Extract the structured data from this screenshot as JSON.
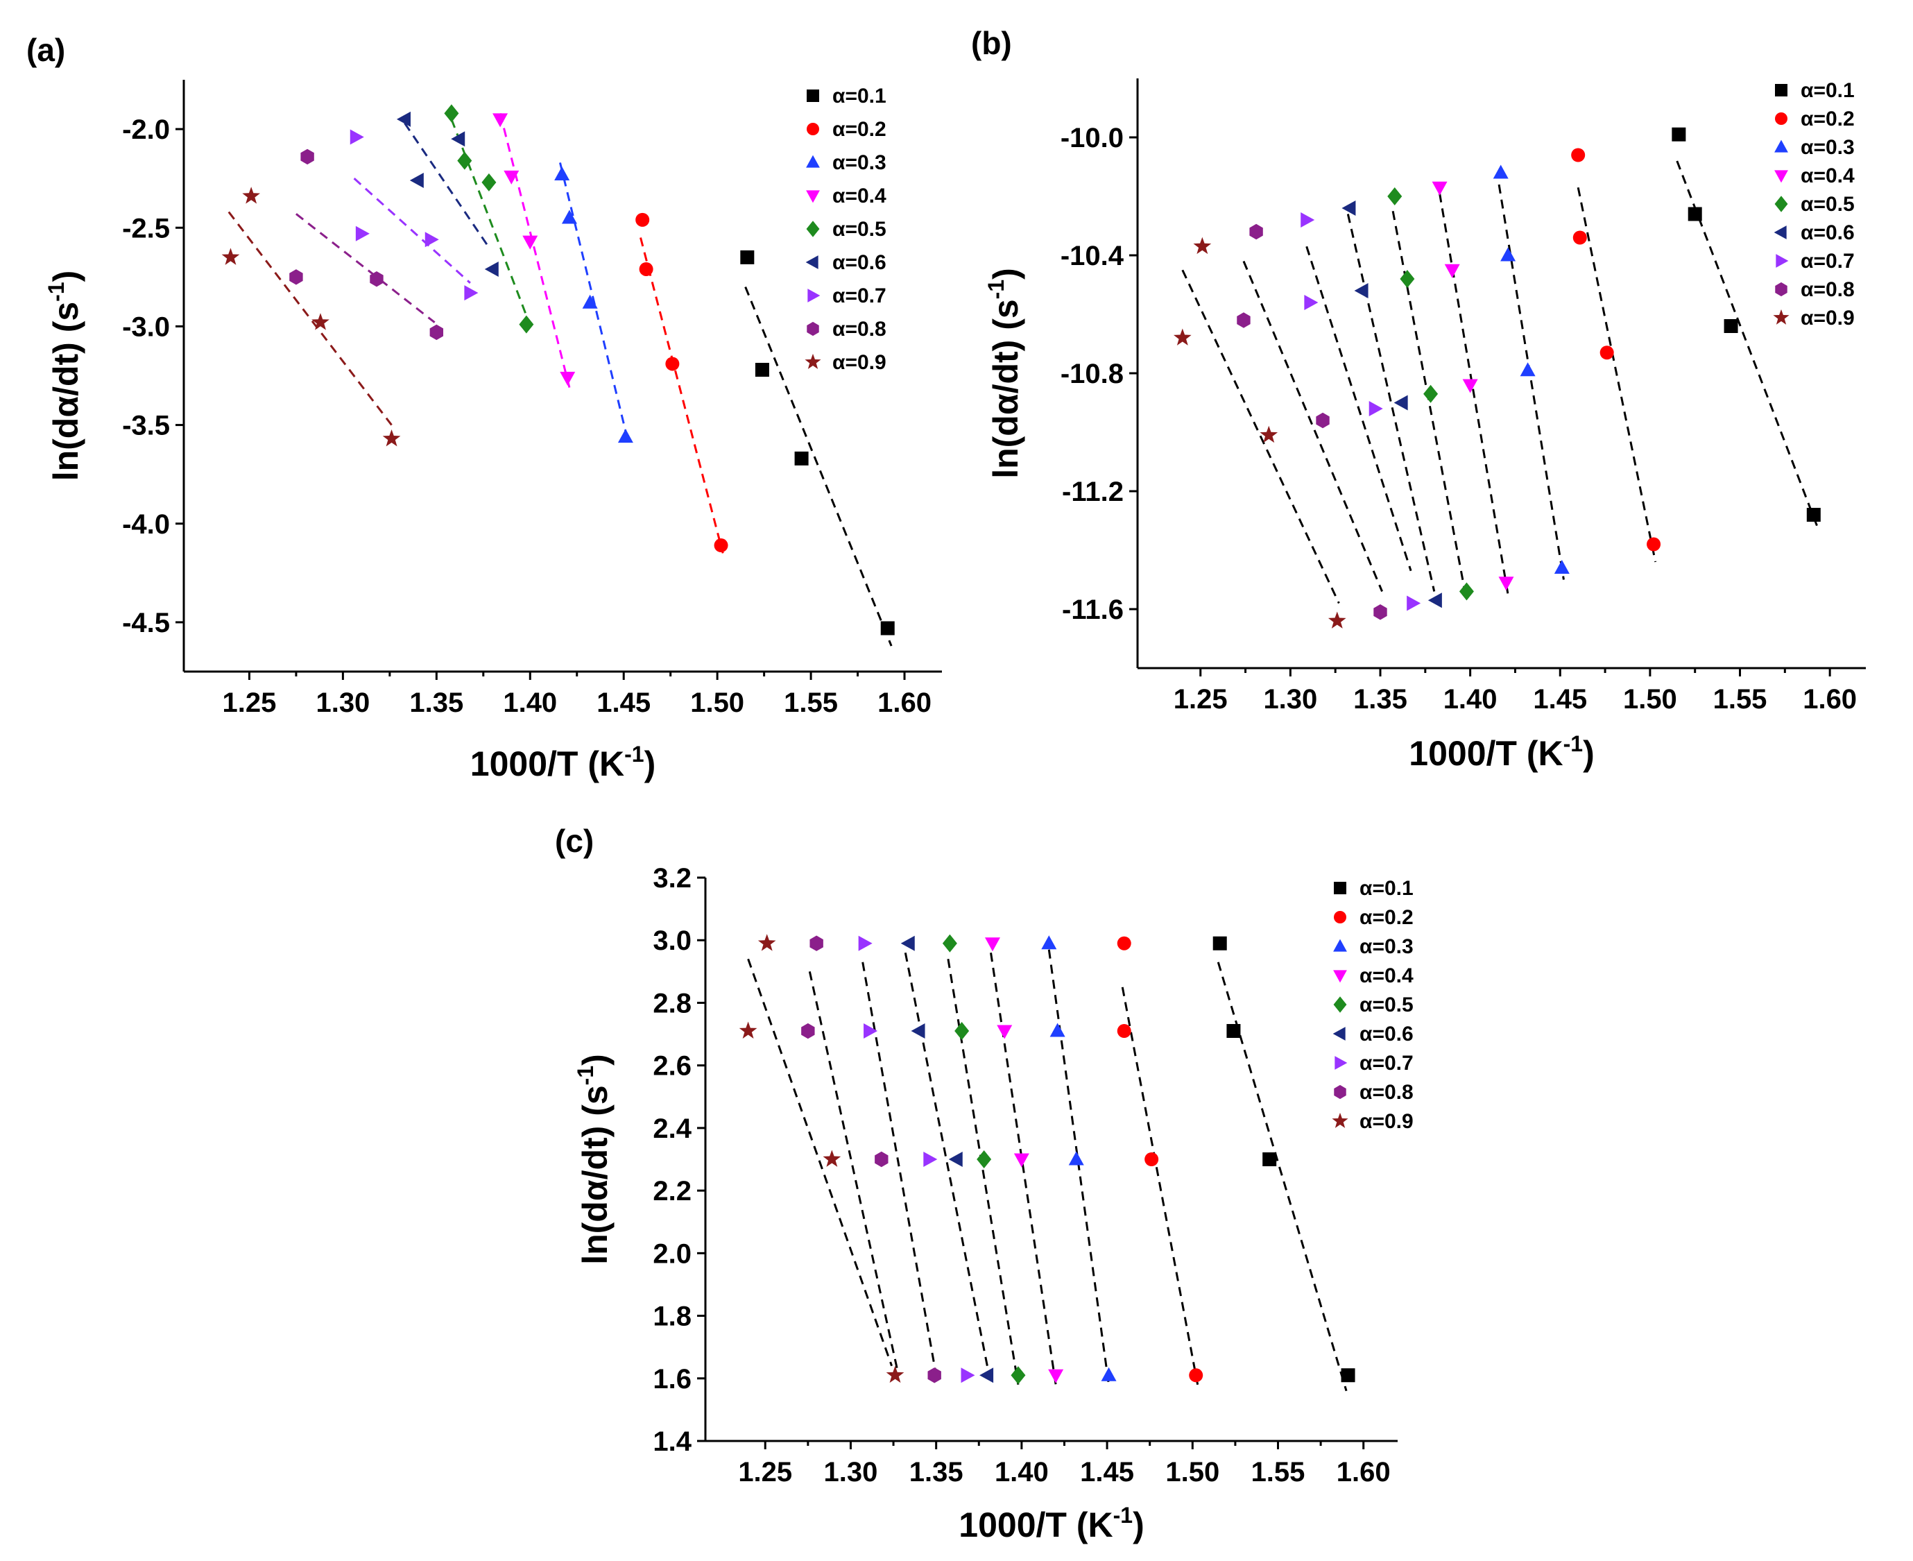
{
  "series_styles": [
    {
      "alpha": 0.1,
      "label": "α=0.1",
      "marker": "square",
      "color": "#000000"
    },
    {
      "alpha": 0.2,
      "label": "α=0.2",
      "marker": "circle",
      "color": "#ff0000"
    },
    {
      "alpha": 0.3,
      "label": "α=0.3",
      "marker": "triangle-up",
      "color": "#1f3fff"
    },
    {
      "alpha": 0.4,
      "label": "α=0.4",
      "marker": "triangle-down",
      "color": "#ff00ff"
    },
    {
      "alpha": 0.5,
      "label": "α=0.5",
      "marker": "diamond",
      "color": "#1e8b1e"
    },
    {
      "alpha": 0.6,
      "label": "α=0.6",
      "marker": "triangle-left",
      "color": "#1a2a80"
    },
    {
      "alpha": 0.7,
      "label": "α=0.7",
      "marker": "triangle-right",
      "color": "#9933ff"
    },
    {
      "alpha": 0.8,
      "label": "α=0.8",
      "marker": "hexagon",
      "color": "#8b1f8b"
    },
    {
      "alpha": 0.9,
      "label": "α=0.9",
      "marker": "star",
      "color": "#8b1a1a"
    }
  ],
  "chart_data": [
    {
      "panel": "(a)",
      "type": "scatter",
      "xlabel": "1000/T (K-1)",
      "ylabel": "ln(dα/dt) (s-1)",
      "xlim": [
        1.215,
        1.62
      ],
      "ylim": [
        -4.75,
        -1.75
      ],
      "xticks": [
        1.25,
        1.3,
        1.35,
        1.4,
        1.45,
        1.5,
        1.55,
        1.6
      ],
      "xtick_labels": [
        "1.25",
        "1.30",
        "1.35",
        "1.40",
        "1.45",
        "1.50",
        "1.55",
        "1.60"
      ],
      "yticks": [
        -2.0,
        -2.5,
        -3.0,
        -3.5,
        -4.0,
        -4.5
      ],
      "ytick_labels": [
        "-2.0",
        "-2.5",
        "-3.0",
        "-3.5",
        "-4.0",
        "-4.5"
      ],
      "series": [
        {
          "name": "α=0.1",
          "x": [
            1.516,
            1.524,
            1.545,
            1.591
          ],
          "y": [
            -2.65,
            -3.22,
            -3.67,
            -4.53
          ],
          "fit": [
            [
              1.515,
              -2.8
            ],
            [
              1.593,
              -4.62
            ]
          ]
        },
        {
          "name": "α=0.2",
          "x": [
            1.46,
            1.462,
            1.476,
            1.502
          ],
          "y": [
            -2.46,
            -2.71,
            -3.19,
            -4.11
          ],
          "fit": [
            [
              1.459,
              -2.55
            ],
            [
              1.503,
              -4.15
            ]
          ]
        },
        {
          "name": "α=0.3",
          "x": [
            1.417,
            1.421,
            1.432,
            1.451
          ],
          "y": [
            -2.23,
            -2.45,
            -2.88,
            -3.56
          ],
          "fit": [
            [
              1.416,
              -2.17
            ],
            [
              1.452,
              -3.57
            ]
          ]
        },
        {
          "name": "α=0.4",
          "x": [
            1.384,
            1.39,
            1.4,
            1.42
          ],
          "y": [
            -1.95,
            -2.24,
            -2.57,
            -3.26
          ],
          "fit": [
            [
              1.384,
              -1.92
            ],
            [
              1.421,
              -3.31
            ]
          ]
        },
        {
          "name": "α=0.5",
          "x": [
            1.358,
            1.365,
            1.378,
            1.398
          ],
          "y": [
            -1.92,
            -2.16,
            -2.27,
            -2.99
          ],
          "fit": [
            [
              1.358,
              -1.95
            ],
            [
              1.399,
              -2.97
            ]
          ]
        },
        {
          "name": "α=0.6",
          "x": [
            1.333,
            1.34,
            1.362,
            1.38
          ],
          "y": [
            -1.95,
            -2.26,
            -2.05,
            -2.71
          ],
          "fit": [
            [
              1.333,
              -1.97
            ],
            [
              1.378,
              -2.6
            ]
          ]
        },
        {
          "name": "α=0.7",
          "x": [
            1.307,
            1.31,
            1.347,
            1.368
          ],
          "y": [
            -2.04,
            -2.53,
            -2.56,
            -2.83
          ],
          "fit": [
            [
              1.306,
              -2.25
            ],
            [
              1.368,
              -2.78
            ]
          ]
        },
        {
          "name": "α=0.8",
          "x": [
            1.281,
            1.275,
            1.318,
            1.35
          ],
          "y": [
            -2.14,
            -2.75,
            -2.76,
            -3.03
          ],
          "fit": [
            [
              1.275,
              -2.43
            ],
            [
              1.349,
              -2.98
            ]
          ]
        },
        {
          "name": "α=0.9",
          "x": [
            1.251,
            1.24,
            1.288,
            1.326
          ],
          "y": [
            -2.34,
            -2.65,
            -2.98,
            -3.57
          ],
          "fit": [
            [
              1.239,
              -2.42
            ],
            [
              1.326,
              -3.5
            ]
          ]
        }
      ],
      "legend": "top-right"
    },
    {
      "panel": "(b)",
      "type": "scatter",
      "xlabel": "1000/T (K-1)",
      "ylabel": "ln(dα/dt) (s-1)",
      "xlim": [
        1.215,
        1.62
      ],
      "ylim": [
        -11.8,
        -9.8
      ],
      "xticks": [
        1.25,
        1.3,
        1.35,
        1.4,
        1.45,
        1.5,
        1.55,
        1.6
      ],
      "xtick_labels": [
        "1.25",
        "1.30",
        "1.35",
        "1.40",
        "1.45",
        "1.50",
        "1.55",
        "1.60"
      ],
      "yticks": [
        -10.0,
        -10.4,
        -10.8,
        -11.2,
        -11.6
      ],
      "ytick_labels": [
        "-10.0",
        "-10.4",
        "-10.8",
        "-11.2",
        "-11.6"
      ],
      "series": [
        {
          "name": "α=0.1",
          "x": [
            1.516,
            1.525,
            1.545,
            1.591
          ],
          "y": [
            -9.99,
            -10.26,
            -10.64,
            -11.28
          ],
          "fit": [
            [
              1.515,
              -10.08
            ],
            [
              1.593,
              -11.32
            ]
          ]
        },
        {
          "name": "α=0.2",
          "x": [
            1.46,
            1.461,
            1.476,
            1.502
          ],
          "y": [
            -10.06,
            -10.34,
            -10.73,
            -11.38
          ],
          "fit": [
            [
              1.46,
              -10.17
            ],
            [
              1.503,
              -11.44
            ]
          ]
        },
        {
          "name": "α=0.3",
          "x": [
            1.417,
            1.421,
            1.432,
            1.451
          ],
          "y": [
            -10.12,
            -10.4,
            -10.79,
            -11.46
          ],
          "fit": [
            [
              1.416,
              -10.16
            ],
            [
              1.452,
              -11.5
            ]
          ]
        },
        {
          "name": "α=0.4",
          "x": [
            1.383,
            1.39,
            1.4,
            1.42
          ],
          "y": [
            -10.17,
            -10.45,
            -10.84,
            -11.51
          ],
          "fit": [
            [
              1.383,
              -10.19
            ],
            [
              1.421,
              -11.55
            ]
          ]
        },
        {
          "name": "α=0.5",
          "x": [
            1.358,
            1.365,
            1.378,
            1.398
          ],
          "y": [
            -10.2,
            -10.48,
            -10.87,
            -11.54
          ],
          "fit": [
            [
              1.357,
              -10.25
            ],
            [
              1.398,
              -11.57
            ]
          ]
        },
        {
          "name": "α=0.6",
          "x": [
            1.333,
            1.34,
            1.362,
            1.381
          ],
          "y": [
            -10.24,
            -10.52,
            -10.9,
            -11.57
          ],
          "fit": [
            [
              1.332,
              -10.26
            ],
            [
              1.38,
              -11.54
            ]
          ]
        },
        {
          "name": "α=0.7",
          "x": [
            1.309,
            1.311,
            1.347,
            1.368
          ],
          "y": [
            -10.28,
            -10.56,
            -10.92,
            -11.58
          ],
          "fit": [
            [
              1.309,
              -10.37
            ],
            [
              1.367,
              -11.47
            ]
          ]
        },
        {
          "name": "α=0.8",
          "x": [
            1.281,
            1.274,
            1.318,
            1.35
          ],
          "y": [
            -10.32,
            -10.62,
            -10.96,
            -11.61
          ],
          "fit": [
            [
              1.274,
              -10.42
            ],
            [
              1.351,
              -11.54
            ]
          ]
        },
        {
          "name": "α=0.9",
          "x": [
            1.251,
            1.24,
            1.288,
            1.326
          ],
          "y": [
            -10.37,
            -10.68,
            -11.01,
            -11.64
          ],
          "fit": [
            [
              1.24,
              -10.45
            ],
            [
              1.327,
              -11.58
            ]
          ]
        }
      ],
      "legend": "top-right"
    },
    {
      "panel": "(c)",
      "type": "scatter",
      "xlabel": "1000/T (K-1)",
      "ylabel": "ln(dα/dt) (s-1)",
      "xlim": [
        1.215,
        1.62
      ],
      "ylim": [
        1.4,
        3.2
      ],
      "xticks": [
        1.25,
        1.3,
        1.35,
        1.4,
        1.45,
        1.5,
        1.55,
        1.6
      ],
      "xtick_labels": [
        "1.25",
        "1.30",
        "1.35",
        "1.40",
        "1.45",
        "1.50",
        "1.55",
        "1.60"
      ],
      "yticks": [
        1.4,
        1.6,
        1.8,
        2.0,
        2.2,
        2.4,
        2.6,
        2.8,
        3.0,
        3.2
      ],
      "ytick_labels": [
        "1.4",
        "1.6",
        "1.8",
        "2.0",
        "2.2",
        "2.4",
        "2.6",
        "2.8",
        "3.0",
        "3.2"
      ],
      "series": [
        {
          "name": "α=0.1",
          "x": [
            1.516,
            1.524,
            1.545,
            1.591
          ],
          "y": [
            2.99,
            2.71,
            2.3,
            1.61
          ],
          "fit": [
            [
              1.515,
              2.93
            ],
            [
              1.59,
              1.56
            ]
          ]
        },
        {
          "name": "α=0.2",
          "x": [
            1.46,
            1.46,
            1.476,
            1.502
          ],
          "y": [
            2.99,
            2.71,
            2.3,
            1.61
          ],
          "fit": [
            [
              1.459,
              2.85
            ],
            [
              1.503,
              1.58
            ]
          ]
        },
        {
          "name": "α=0.3",
          "x": [
            1.416,
            1.421,
            1.432,
            1.451
          ],
          "y": [
            2.99,
            2.71,
            2.3,
            1.61
          ],
          "fit": [
            [
              1.416,
              2.97
            ],
            [
              1.451,
              1.58
            ]
          ]
        },
        {
          "name": "α=0.4",
          "x": [
            1.383,
            1.39,
            1.4,
            1.42
          ],
          "y": [
            2.99,
            2.71,
            2.3,
            1.61
          ],
          "fit": [
            [
              1.382,
              2.96
            ],
            [
              1.42,
              1.58
            ]
          ]
        },
        {
          "name": "α=0.5",
          "x": [
            1.358,
            1.365,
            1.378,
            1.398
          ],
          "y": [
            2.99,
            2.71,
            2.3,
            1.61
          ],
          "fit": [
            [
              1.357,
              2.94
            ],
            [
              1.398,
              1.58
            ]
          ]
        },
        {
          "name": "α=0.6",
          "x": [
            1.334,
            1.34,
            1.362,
            1.38
          ],
          "y": [
            2.99,
            2.71,
            2.3,
            1.61
          ],
          "fit": [
            [
              1.332,
              2.96
            ],
            [
              1.381,
              1.61
            ]
          ]
        },
        {
          "name": "α=0.7",
          "x": [
            1.308,
            1.311,
            1.346,
            1.368
          ],
          "y": [
            2.99,
            2.71,
            2.3,
            1.61
          ],
          "fit": [
            [
              1.307,
              2.93
            ],
            [
              1.35,
              1.61
            ]
          ]
        },
        {
          "name": "α=0.8",
          "x": [
            1.28,
            1.275,
            1.318,
            1.349
          ],
          "y": [
            2.99,
            2.71,
            2.3,
            1.61
          ],
          "fit": [
            [
              1.276,
              2.9
            ],
            [
              1.328,
              1.61
            ]
          ]
        },
        {
          "name": "α=0.9",
          "x": [
            1.251,
            1.24,
            1.289,
            1.326
          ],
          "y": [
            2.99,
            2.71,
            2.3,
            1.61
          ],
          "fit": [
            [
              1.24,
              2.94
            ],
            [
              1.324,
              1.64
            ]
          ]
        }
      ],
      "legend": "top-right"
    }
  ]
}
